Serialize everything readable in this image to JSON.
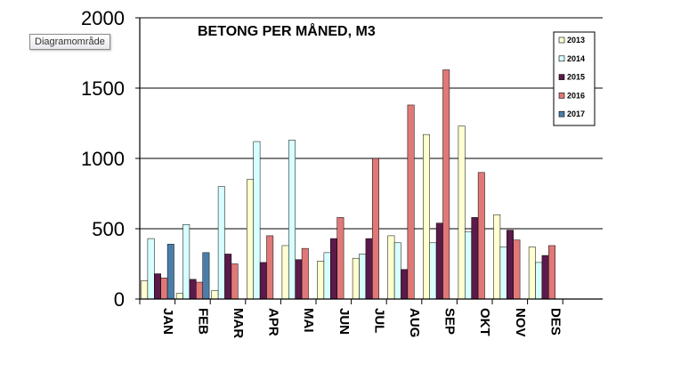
{
  "tooltip": "Diagramområde",
  "chart_data": {
    "type": "bar",
    "title": "BETONG PER MÅNED, M3",
    "categories": [
      "JAN",
      "FEB",
      "MAR",
      "APR",
      "MAI",
      "JUN",
      "JUL",
      "AUG",
      "SEP",
      "OKT",
      "NOV",
      "DES"
    ],
    "ylim": [
      0,
      2000
    ],
    "yticks": [
      0,
      500,
      1000,
      1500,
      2000
    ],
    "grid": true,
    "legend": "top-right",
    "series": [
      {
        "name": "2013",
        "color": "#ffffd0",
        "values": [
          130,
          40,
          60,
          850,
          380,
          270,
          290,
          450,
          1170,
          1230,
          600,
          370
        ]
      },
      {
        "name": "2014",
        "color": "#d8ffff",
        "values": [
          430,
          530,
          800,
          1120,
          1130,
          330,
          320,
          400,
          400,
          480,
          370,
          260
        ]
      },
      {
        "name": "2015",
        "color": "#5a1a4a",
        "values": [
          180,
          140,
          320,
          260,
          280,
          430,
          430,
          210,
          540,
          580,
          490,
          310
        ]
      },
      {
        "name": "2016",
        "color": "#e07878",
        "values": [
          150,
          120,
          250,
          450,
          360,
          580,
          1000,
          1380,
          1630,
          900,
          420,
          380
        ]
      },
      {
        "name": "2017",
        "color": "#4a7ea8",
        "values": [
          390,
          330,
          null,
          null,
          null,
          null,
          null,
          null,
          null,
          null,
          null,
          null
        ]
      }
    ]
  }
}
